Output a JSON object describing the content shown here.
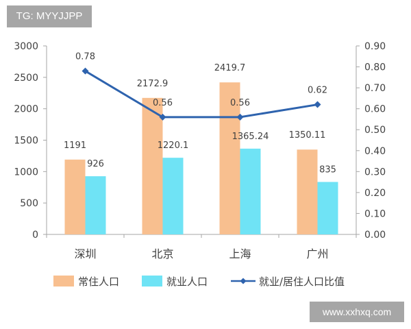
{
  "tag_label": "TG: MYYJJPP",
  "watermark": "www.xxhxq.com",
  "colors": {
    "resident": "#f8bf8f",
    "employed": "#6fe3f5",
    "ratio": "#2e63ae",
    "axis": "#a6a6a6"
  },
  "chart_data": {
    "type": "bar",
    "categories": [
      "深圳",
      "北京",
      "上海",
      "广州"
    ],
    "series": [
      {
        "name": "常住人口",
        "type": "bar",
        "axis": "left",
        "values": [
          1191,
          2172.9,
          2419.7,
          1350.11
        ],
        "labels": [
          "1191",
          "2172.9",
          "2419.7",
          "1350.11"
        ]
      },
      {
        "name": "就业人口",
        "type": "bar",
        "axis": "left",
        "values": [
          926,
          1220.1,
          1365.24,
          835
        ],
        "labels": [
          "926",
          "1220.1",
          "1365.24",
          "835"
        ]
      },
      {
        "name": "就业/居住人口比值",
        "type": "line",
        "axis": "right",
        "values": [
          0.78,
          0.56,
          0.56,
          0.62
        ],
        "labels": [
          "0.78",
          "0.56",
          "0.56",
          "0.62"
        ]
      }
    ],
    "y_left": {
      "min": 0,
      "max": 3000,
      "ticks": [
        "0",
        "500",
        "1000",
        "1500",
        "2000",
        "2500",
        "3000"
      ]
    },
    "y_right": {
      "min": 0,
      "max": 0.9,
      "ticks": [
        "0.00",
        "0.10",
        "0.20",
        "0.30",
        "0.40",
        "0.50",
        "0.60",
        "0.70",
        "0.80",
        "0.90"
      ]
    },
    "grid": false,
    "legend_position": "bottom"
  }
}
